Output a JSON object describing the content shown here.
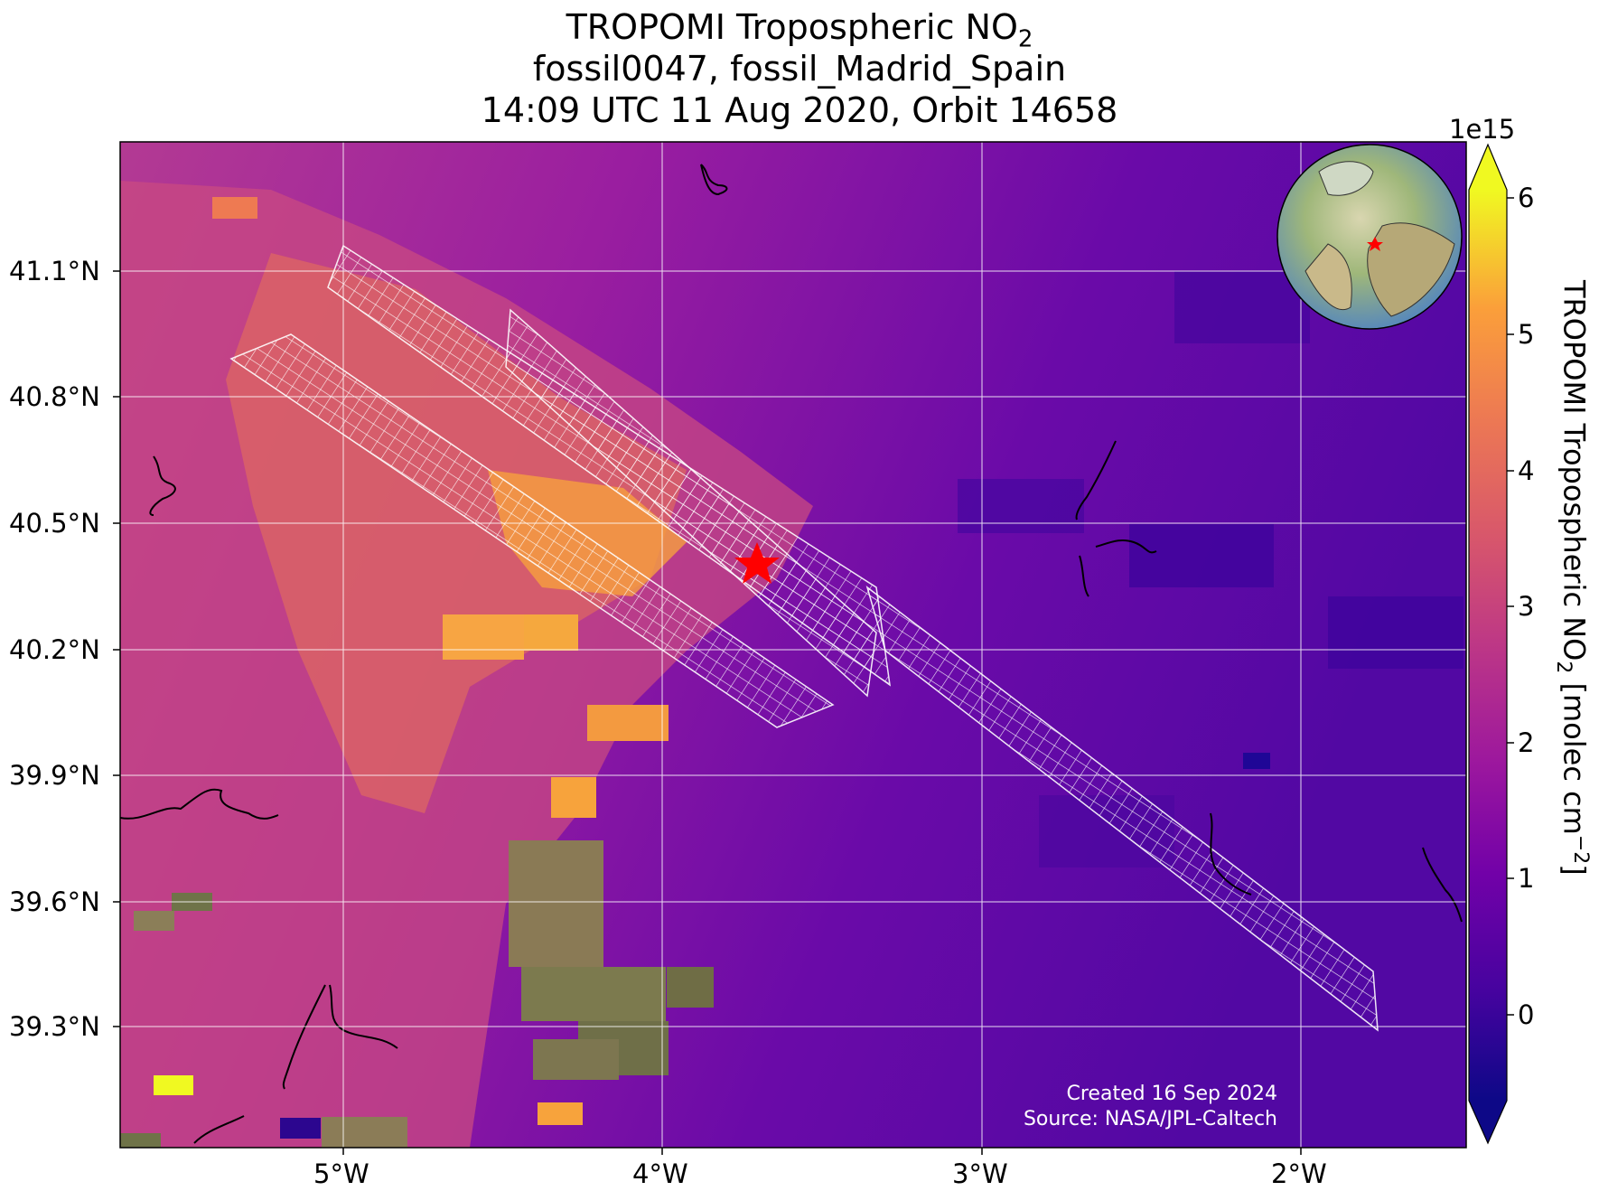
{
  "title": {
    "line1_text": "TROPOMI Tropospheric NO",
    "line1_sub": "2",
    "line2": "fossil0047, fossil_Madrid_Spain",
    "line3": "14:09 UTC 11 Aug 2020, Orbit 14658"
  },
  "axes": {
    "lon_ticks": [
      "5°W",
      "4°W",
      "3°W",
      "2°W"
    ],
    "lat_ticks": [
      "41.1°N",
      "40.8°N",
      "40.5°N",
      "40.2°N",
      "39.9°N",
      "39.6°N",
      "39.3°N"
    ]
  },
  "colorbar": {
    "multiplier": "1e15",
    "ticks": [
      "6",
      "5",
      "4",
      "3",
      "2",
      "1",
      "0"
    ],
    "label_main": "TROPOMI Tropospheric NO",
    "label_sub": "2",
    "label_unit": " [molec cm",
    "label_sup": "−2",
    "label_end": "]",
    "colormap": "plasma"
  },
  "credits": {
    "created": "Created 16 Sep 2024",
    "source": "Source: NASA/JPL-Caltech"
  },
  "marker": {
    "name": "Madrid power plant",
    "color": "#ff0000",
    "symbol": "star"
  },
  "colors": {
    "grid": "#ffffff",
    "coast": "#000000",
    "swath": "#ffffff"
  }
}
